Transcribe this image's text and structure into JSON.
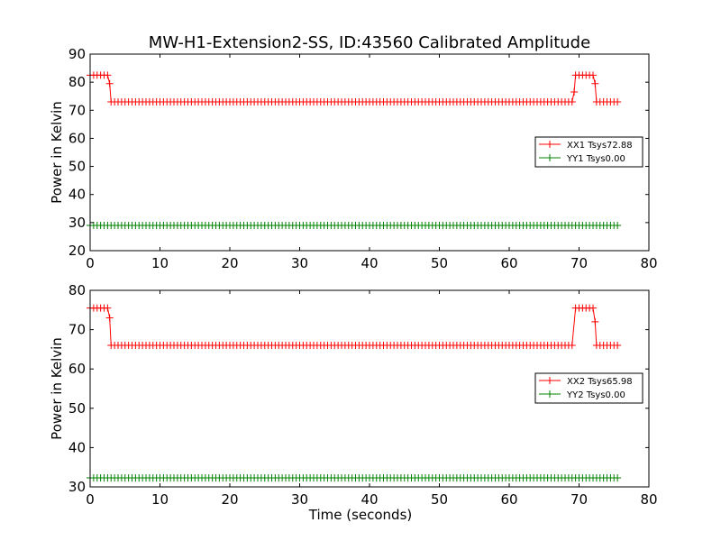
{
  "figure": {
    "title": "MW-H1-Extension2-SS, ID:43560 Calibrated Amplitude"
  },
  "colors": {
    "xx": "#ff0000",
    "yy": "#008000"
  },
  "chart_data": [
    {
      "type": "line",
      "title": "MW-H1-Extension2-SS, ID:43560 Calibrated Amplitude",
      "xlabel": "",
      "ylabel": "Power in Kelvin",
      "xlim": [
        0,
        80
      ],
      "ylim": [
        20,
        90
      ],
      "xticks": [
        "0",
        "10",
        "20",
        "30",
        "40",
        "50",
        "60",
        "70",
        "80"
      ],
      "yticks": [
        "20",
        "30",
        "40",
        "50",
        "60",
        "70",
        "80",
        "90"
      ],
      "grid": false,
      "legend_position": "center-right",
      "series": [
        {
          "name": "XX1 Tsys72.88",
          "color": "#ff0000",
          "marker": "+",
          "step": 0.5,
          "x_start": 0,
          "x_end": 75.5,
          "segments": [
            {
              "x": [
                0,
                2.5
              ],
              "value": 82.5
            },
            {
              "x": [
                3.0,
                69.0
              ],
              "value": 73.0
            },
            {
              "x": [
                69.5,
                72.0
              ],
              "value": 82.5
            },
            {
              "x": [
                72.5,
                75.5
              ],
              "value": 73.0
            }
          ],
          "transitions": [
            {
              "x": 2.8,
              "value": 79.5
            },
            {
              "x": 69.3,
              "value": 76.5
            },
            {
              "x": 72.3,
              "value": 79.5
            }
          ]
        },
        {
          "name": "YY1 Tsys0.00",
          "color": "#008000",
          "marker": "+",
          "step": 0.5,
          "x_start": 0,
          "x_end": 75.5,
          "segments": [
            {
              "x": [
                0,
                75.5
              ],
              "value": 29.0
            }
          ],
          "transitions": []
        }
      ]
    },
    {
      "type": "line",
      "title": "",
      "xlabel": "Time (seconds)",
      "ylabel": "Power in Kelvin",
      "xlim": [
        0,
        80
      ],
      "ylim": [
        30,
        80
      ],
      "xticks": [
        "0",
        "10",
        "20",
        "30",
        "40",
        "50",
        "60",
        "70",
        "80"
      ],
      "yticks": [
        "30",
        "40",
        "50",
        "60",
        "70",
        "80"
      ],
      "grid": false,
      "legend_position": "center-right",
      "series": [
        {
          "name": "XX2 Tsys65.98",
          "color": "#ff0000",
          "marker": "+",
          "step": 0.5,
          "x_start": 0,
          "x_end": 75.5,
          "segments": [
            {
              "x": [
                0,
                2.5
              ],
              "value": 75.5
            },
            {
              "x": [
                3.0,
                69.0
              ],
              "value": 66.0
            },
            {
              "x": [
                69.5,
                72.0
              ],
              "value": 75.5
            },
            {
              "x": [
                72.5,
                75.5
              ],
              "value": 66.0
            }
          ],
          "transitions": [
            {
              "x": 2.8,
              "value": 73.0
            },
            {
              "x": 72.3,
              "value": 72.0
            }
          ]
        },
        {
          "name": "YY2 Tsys0.00",
          "color": "#008000",
          "marker": "+",
          "step": 0.5,
          "x_start": 0,
          "x_end": 75.5,
          "segments": [
            {
              "x": [
                0,
                75.5
              ],
              "value": 32.3
            }
          ],
          "transitions": []
        }
      ]
    }
  ]
}
